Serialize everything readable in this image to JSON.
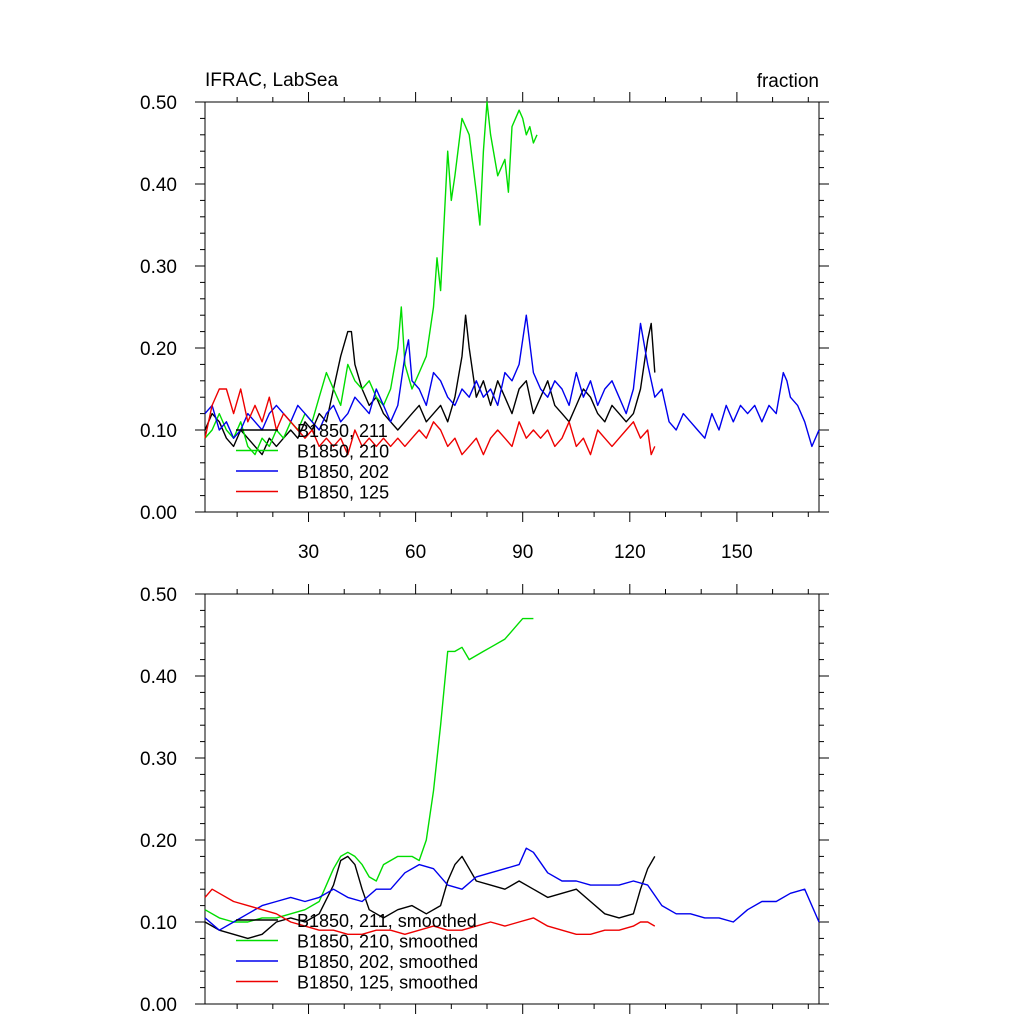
{
  "chart_data": [
    {
      "type": "line",
      "title_left": "IFRAC, LabSea",
      "title_right": "fraction",
      "xlim": [
        1,
        173
      ],
      "ylim": [
        0,
        0.5
      ],
      "x_major_ticks": [
        30,
        60,
        90,
        120,
        150
      ],
      "x_tick_labels": [
        "30",
        "60",
        "90",
        "120",
        "150"
      ],
      "y_major_ticks": [
        0,
        0.1,
        0.2,
        0.3,
        0.4,
        0.5
      ],
      "y_tick_labels": [
        "0.00",
        "0.10",
        "0.20",
        "0.30",
        "0.40",
        "0.50"
      ],
      "legend_position": "bottom-left",
      "series": [
        {
          "name": "B1850, 211",
          "color": "#000000",
          "x": [
            1,
            3,
            5,
            7,
            9,
            11,
            13,
            15,
            17,
            19,
            21,
            23,
            25,
            27,
            29,
            31,
            33,
            35,
            37,
            39,
            41,
            42,
            43,
            45,
            47,
            49,
            51,
            53,
            55,
            57,
            59,
            61,
            63,
            65,
            67,
            69,
            71,
            73,
            74,
            75,
            77,
            79,
            81,
            83,
            85,
            87,
            89,
            91,
            93,
            95,
            97,
            99,
            101,
            103,
            105,
            107,
            109,
            111,
            113,
            115,
            117,
            119,
            121,
            123,
            125,
            126,
            127
          ],
          "y": [
            0.1,
            0.12,
            0.11,
            0.09,
            0.08,
            0.1,
            0.09,
            0.08,
            0.07,
            0.09,
            0.08,
            0.09,
            0.1,
            0.09,
            0.11,
            0.1,
            0.12,
            0.11,
            0.15,
            0.19,
            0.22,
            0.22,
            0.18,
            0.15,
            0.13,
            0.14,
            0.12,
            0.11,
            0.1,
            0.11,
            0.12,
            0.13,
            0.11,
            0.12,
            0.13,
            0.11,
            0.14,
            0.19,
            0.24,
            0.2,
            0.14,
            0.16,
            0.13,
            0.16,
            0.14,
            0.12,
            0.15,
            0.16,
            0.12,
            0.14,
            0.16,
            0.13,
            0.12,
            0.11,
            0.13,
            0.15,
            0.14,
            0.12,
            0.11,
            0.13,
            0.12,
            0.11,
            0.12,
            0.15,
            0.21,
            0.23,
            0.17
          ]
        },
        {
          "name": "B1850, 210",
          "color": "#00dd00",
          "x": [
            1,
            3,
            5,
            7,
            9,
            11,
            13,
            15,
            17,
            19,
            21,
            23,
            25,
            27,
            29,
            31,
            33,
            35,
            37,
            39,
            41,
            43,
            45,
            47,
            49,
            51,
            53,
            55,
            56,
            57,
            59,
            61,
            63,
            65,
            66,
            67,
            69,
            70,
            71,
            73,
            75,
            77,
            78,
            79,
            80,
            81,
            83,
            85,
            86,
            87,
            89,
            90,
            91,
            92,
            93,
            94
          ],
          "y": [
            0.09,
            0.1,
            0.12,
            0.1,
            0.09,
            0.11,
            0.08,
            0.07,
            0.09,
            0.08,
            0.1,
            0.09,
            0.11,
            0.1,
            0.12,
            0.11,
            0.14,
            0.17,
            0.15,
            0.13,
            0.18,
            0.16,
            0.15,
            0.16,
            0.14,
            0.13,
            0.15,
            0.2,
            0.25,
            0.18,
            0.15,
            0.17,
            0.19,
            0.25,
            0.31,
            0.27,
            0.44,
            0.38,
            0.41,
            0.48,
            0.46,
            0.39,
            0.35,
            0.44,
            0.5,
            0.46,
            0.41,
            0.43,
            0.39,
            0.47,
            0.49,
            0.48,
            0.46,
            0.47,
            0.45,
            0.46
          ]
        },
        {
          "name": "B1850, 202",
          "color": "#0000ee",
          "x": [
            1,
            3,
            5,
            7,
            9,
            11,
            13,
            15,
            17,
            19,
            21,
            23,
            25,
            27,
            29,
            31,
            33,
            35,
            37,
            39,
            41,
            43,
            45,
            47,
            49,
            51,
            53,
            55,
            57,
            58,
            59,
            61,
            63,
            65,
            67,
            69,
            71,
            73,
            75,
            77,
            79,
            81,
            83,
            85,
            87,
            89,
            91,
            93,
            95,
            97,
            99,
            101,
            103,
            105,
            107,
            109,
            111,
            113,
            115,
            117,
            119,
            121,
            123,
            125,
            127,
            129,
            131,
            133,
            135,
            137,
            139,
            141,
            143,
            145,
            147,
            149,
            151,
            153,
            155,
            157,
            159,
            161,
            163,
            164,
            165,
            167,
            169,
            171,
            173
          ],
          "y": [
            0.12,
            0.13,
            0.1,
            0.11,
            0.09,
            0.1,
            0.12,
            0.11,
            0.1,
            0.12,
            0.13,
            0.12,
            0.11,
            0.13,
            0.12,
            0.11,
            0.1,
            0.12,
            0.13,
            0.11,
            0.12,
            0.14,
            0.13,
            0.12,
            0.15,
            0.13,
            0.11,
            0.13,
            0.19,
            0.21,
            0.16,
            0.15,
            0.13,
            0.17,
            0.16,
            0.14,
            0.13,
            0.15,
            0.14,
            0.16,
            0.14,
            0.15,
            0.13,
            0.17,
            0.16,
            0.18,
            0.24,
            0.17,
            0.15,
            0.14,
            0.16,
            0.15,
            0.13,
            0.17,
            0.14,
            0.16,
            0.13,
            0.15,
            0.16,
            0.14,
            0.12,
            0.15,
            0.23,
            0.18,
            0.14,
            0.15,
            0.11,
            0.1,
            0.12,
            0.11,
            0.1,
            0.09,
            0.12,
            0.1,
            0.13,
            0.11,
            0.13,
            0.12,
            0.13,
            0.11,
            0.13,
            0.12,
            0.17,
            0.16,
            0.14,
            0.13,
            0.11,
            0.08,
            0.1
          ]
        },
        {
          "name": "B1850, 125",
          "color": "#ee0000",
          "x": [
            1,
            3,
            5,
            7,
            9,
            11,
            13,
            15,
            17,
            19,
            21,
            23,
            25,
            27,
            29,
            31,
            33,
            35,
            37,
            39,
            41,
            43,
            45,
            47,
            49,
            51,
            53,
            55,
            57,
            59,
            61,
            63,
            65,
            67,
            69,
            71,
            73,
            75,
            77,
            79,
            81,
            83,
            85,
            87,
            89,
            91,
            93,
            95,
            97,
            99,
            101,
            103,
            105,
            107,
            109,
            111,
            113,
            115,
            117,
            119,
            121,
            123,
            125,
            126,
            127
          ],
          "y": [
            0.09,
            0.13,
            0.15,
            0.15,
            0.12,
            0.15,
            0.11,
            0.13,
            0.11,
            0.14,
            0.1,
            0.12,
            0.11,
            0.1,
            0.09,
            0.1,
            0.08,
            0.09,
            0.08,
            0.09,
            0.07,
            0.1,
            0.08,
            0.09,
            0.08,
            0.09,
            0.08,
            0.09,
            0.08,
            0.09,
            0.1,
            0.09,
            0.11,
            0.1,
            0.08,
            0.09,
            0.07,
            0.08,
            0.09,
            0.07,
            0.09,
            0.1,
            0.09,
            0.08,
            0.11,
            0.09,
            0.1,
            0.09,
            0.1,
            0.08,
            0.09,
            0.11,
            0.08,
            0.09,
            0.07,
            0.1,
            0.09,
            0.08,
            0.09,
            0.1,
            0.11,
            0.09,
            0.1,
            0.07,
            0.08
          ]
        }
      ]
    },
    {
      "type": "line",
      "xlim": [
        1,
        173
      ],
      "ylim": [
        0,
        0.5
      ],
      "x_major_ticks": [
        30,
        60,
        90,
        120,
        150
      ],
      "y_major_ticks": [
        0,
        0.1,
        0.2,
        0.3,
        0.4,
        0.5
      ],
      "y_tick_labels": [
        "0.00",
        "0.10",
        "0.20",
        "0.30",
        "0.40",
        "0.50"
      ],
      "legend_position": "bottom-left",
      "series": [
        {
          "name": "B1850, 211, smoothed",
          "color": "#000000",
          "x": [
            1,
            5,
            9,
            13,
            17,
            21,
            25,
            29,
            33,
            37,
            39,
            41,
            43,
            45,
            47,
            51,
            55,
            59,
            63,
            67,
            69,
            71,
            73,
            75,
            77,
            81,
            85,
            89,
            93,
            97,
            101,
            105,
            109,
            113,
            117,
            121,
            123,
            125,
            127
          ],
          "y": [
            0.1,
            0.09,
            0.085,
            0.08,
            0.085,
            0.1,
            0.105,
            0.1,
            0.11,
            0.145,
            0.175,
            0.18,
            0.17,
            0.14,
            0.115,
            0.105,
            0.115,
            0.12,
            0.11,
            0.12,
            0.15,
            0.17,
            0.18,
            0.165,
            0.15,
            0.145,
            0.14,
            0.15,
            0.14,
            0.13,
            0.135,
            0.14,
            0.125,
            0.11,
            0.105,
            0.11,
            0.14,
            0.165,
            0.18
          ]
        },
        {
          "name": "B1850, 210, smoothed",
          "color": "#00dd00",
          "x": [
            1,
            5,
            9,
            13,
            17,
            21,
            25,
            29,
            33,
            37,
            39,
            41,
            43,
            45,
            47,
            49,
            51,
            55,
            59,
            61,
            63,
            65,
            67,
            69,
            71,
            73,
            75,
            77,
            79,
            81,
            85,
            89,
            90,
            91,
            93
          ],
          "y": [
            0.115,
            0.105,
            0.1,
            0.1,
            0.105,
            0.105,
            0.11,
            0.115,
            0.125,
            0.165,
            0.18,
            0.185,
            0.18,
            0.17,
            0.155,
            0.15,
            0.17,
            0.18,
            0.18,
            0.175,
            0.2,
            0.26,
            0.34,
            0.43,
            0.43,
            0.435,
            0.42,
            0.425,
            0.43,
            0.435,
            0.445,
            0.465,
            0.47,
            0.47,
            0.47
          ]
        },
        {
          "name": "B1850, 202, smoothed",
          "color": "#0000ee",
          "x": [
            1,
            5,
            9,
            13,
            17,
            21,
            25,
            29,
            33,
            37,
            41,
            45,
            49,
            53,
            57,
            61,
            65,
            69,
            73,
            77,
            81,
            85,
            89,
            91,
            93,
            97,
            101,
            105,
            109,
            113,
            117,
            121,
            125,
            129,
            133,
            137,
            141,
            145,
            149,
            153,
            157,
            161,
            165,
            169,
            173
          ],
          "y": [
            0.105,
            0.09,
            0.1,
            0.11,
            0.12,
            0.125,
            0.13,
            0.125,
            0.13,
            0.14,
            0.13,
            0.125,
            0.14,
            0.14,
            0.16,
            0.17,
            0.165,
            0.145,
            0.14,
            0.155,
            0.16,
            0.165,
            0.17,
            0.19,
            0.185,
            0.16,
            0.15,
            0.15,
            0.145,
            0.145,
            0.145,
            0.15,
            0.145,
            0.12,
            0.11,
            0.11,
            0.105,
            0.105,
            0.1,
            0.115,
            0.125,
            0.125,
            0.135,
            0.14,
            0.1
          ]
        },
        {
          "name": "B1850, 125, smoothed",
          "color": "#ee0000",
          "x": [
            1,
            3,
            5,
            9,
            13,
            17,
            21,
            25,
            29,
            33,
            37,
            41,
            45,
            49,
            53,
            57,
            61,
            65,
            69,
            73,
            77,
            81,
            85,
            89,
            93,
            97,
            101,
            105,
            109,
            113,
            117,
            121,
            123,
            125,
            127
          ],
          "y": [
            0.13,
            0.14,
            0.135,
            0.125,
            0.12,
            0.115,
            0.11,
            0.1,
            0.095,
            0.09,
            0.09,
            0.085,
            0.085,
            0.09,
            0.09,
            0.085,
            0.09,
            0.095,
            0.09,
            0.09,
            0.095,
            0.1,
            0.095,
            0.1,
            0.105,
            0.095,
            0.09,
            0.085,
            0.085,
            0.09,
            0.09,
            0.095,
            0.1,
            0.1,
            0.095
          ]
        }
      ]
    }
  ]
}
